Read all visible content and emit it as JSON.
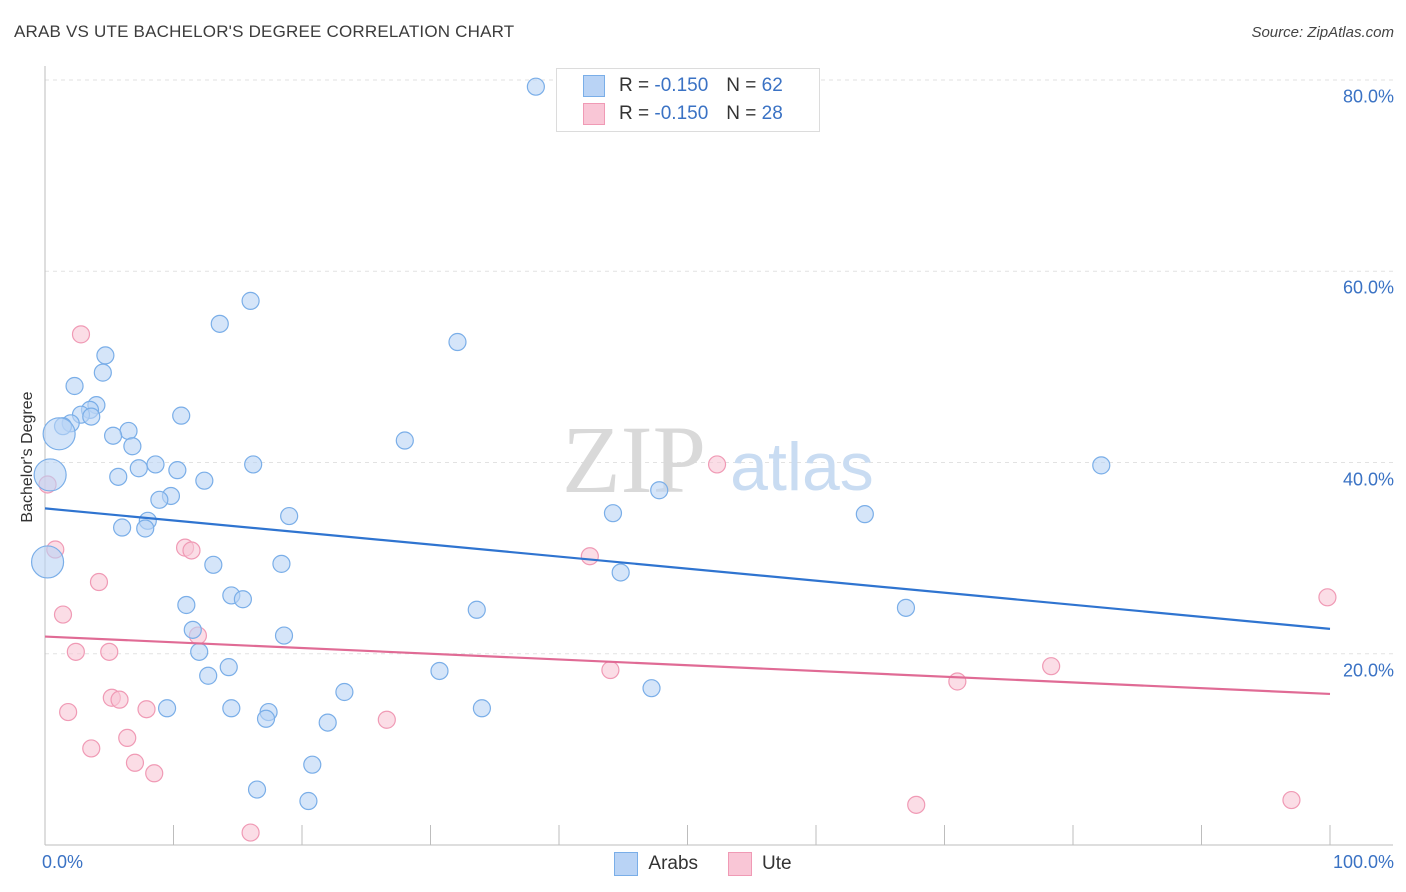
{
  "header": {
    "title": "ARAB VS UTE BACHELOR'S DEGREE CORRELATION CHART",
    "source": "Source: ZipAtlas.com"
  },
  "watermark": {
    "zip": "ZIP",
    "atlas": "atlas"
  },
  "colors": {
    "arabs_fill": "#b9d3f5",
    "arabs_stroke": "#7aaee8",
    "arabs_line": "#2f74d0",
    "ute_fill": "#f9c6d6",
    "ute_stroke": "#f09ab5",
    "ute_line": "#e06b95",
    "axis_text": "#3a72c4"
  },
  "legend_top": [
    {
      "series": "arabs",
      "r_label": "R =",
      "r_value": "-0.150",
      "n_label": "N =",
      "n_value": "62"
    },
    {
      "series": "ute",
      "r_label": "R =",
      "r_value": "-0.150",
      "n_label": "N =",
      "n_value": "28"
    }
  ],
  "legend_bottom": [
    {
      "series": "arabs",
      "label": "Arabs"
    },
    {
      "series": "ute",
      "label": "Ute"
    }
  ],
  "chart_data": {
    "type": "scatter",
    "xlabel": "",
    "ylabel": "Bachelor's Degree",
    "xlim": [
      0,
      100
    ],
    "ylim": [
      0,
      80
    ],
    "x_tick_labels": [
      {
        "value": 0,
        "label": "0.0%"
      },
      {
        "value": 100,
        "label": "100.0%"
      }
    ],
    "y_tick_labels": [
      {
        "value": 20,
        "label": "20.0%"
      },
      {
        "value": 40,
        "label": "40.0%"
      },
      {
        "value": 60,
        "label": "60.0%"
      },
      {
        "value": 80,
        "label": "80.0%"
      }
    ],
    "grid": true,
    "legend_position": "top-center",
    "series": [
      {
        "name": "Arabs",
        "trend": {
          "x": [
            0,
            100
          ],
          "y": [
            35.2,
            22.6
          ]
        },
        "points": [
          {
            "x": 38.2,
            "y": 79.3
          },
          {
            "x": 16.0,
            "y": 56.9
          },
          {
            "x": 13.6,
            "y": 54.5
          },
          {
            "x": 32.1,
            "y": 52.6
          },
          {
            "x": 4.7,
            "y": 51.2
          },
          {
            "x": 4.5,
            "y": 49.4
          },
          {
            "x": 2.3,
            "y": 48.0
          },
          {
            "x": 4.0,
            "y": 46.0
          },
          {
            "x": 3.5,
            "y": 45.5
          },
          {
            "x": 2.8,
            "y": 45.0
          },
          {
            "x": 3.6,
            "y": 44.8
          },
          {
            "x": 10.6,
            "y": 44.9
          },
          {
            "x": 2.0,
            "y": 44.1
          },
          {
            "x": 1.4,
            "y": 43.8
          },
          {
            "x": 1.1,
            "y": 43.0,
            "size": "large"
          },
          {
            "x": 6.5,
            "y": 43.3
          },
          {
            "x": 5.3,
            "y": 42.8
          },
          {
            "x": 28.0,
            "y": 42.3
          },
          {
            "x": 6.8,
            "y": 41.7
          },
          {
            "x": 8.6,
            "y": 39.8
          },
          {
            "x": 16.2,
            "y": 39.8
          },
          {
            "x": 82.2,
            "y": 39.7
          },
          {
            "x": 7.3,
            "y": 39.4
          },
          {
            "x": 10.3,
            "y": 39.2
          },
          {
            "x": 0.4,
            "y": 38.7,
            "size": "large"
          },
          {
            "x": 5.7,
            "y": 38.5
          },
          {
            "x": 12.4,
            "y": 38.1
          },
          {
            "x": 47.8,
            "y": 37.1
          },
          {
            "x": 9.8,
            "y": 36.5
          },
          {
            "x": 8.9,
            "y": 36.1
          },
          {
            "x": 44.2,
            "y": 34.7
          },
          {
            "x": 63.8,
            "y": 34.6
          },
          {
            "x": 19.0,
            "y": 34.4
          },
          {
            "x": 8.0,
            "y": 33.9
          },
          {
            "x": 6.0,
            "y": 33.2
          },
          {
            "x": 7.8,
            "y": 33.1
          },
          {
            "x": 0.2,
            "y": 29.6,
            "size": "large"
          },
          {
            "x": 13.1,
            "y": 29.3
          },
          {
            "x": 18.4,
            "y": 29.4
          },
          {
            "x": 44.8,
            "y": 28.5
          },
          {
            "x": 14.5,
            "y": 26.1
          },
          {
            "x": 15.4,
            "y": 25.7
          },
          {
            "x": 11.0,
            "y": 25.1
          },
          {
            "x": 67.0,
            "y": 24.8
          },
          {
            "x": 33.6,
            "y": 24.6
          },
          {
            "x": 11.5,
            "y": 22.5
          },
          {
            "x": 18.6,
            "y": 21.9
          },
          {
            "x": 12.0,
            "y": 20.2
          },
          {
            "x": 14.3,
            "y": 18.6
          },
          {
            "x": 30.7,
            "y": 18.2
          },
          {
            "x": 12.7,
            "y": 17.7
          },
          {
            "x": 47.2,
            "y": 16.4
          },
          {
            "x": 23.3,
            "y": 16.0
          },
          {
            "x": 9.5,
            "y": 14.3
          },
          {
            "x": 14.5,
            "y": 14.3
          },
          {
            "x": 34.0,
            "y": 14.3
          },
          {
            "x": 17.4,
            "y": 13.9
          },
          {
            "x": 17.2,
            "y": 13.2
          },
          {
            "x": 22.0,
            "y": 12.8
          },
          {
            "x": 20.8,
            "y": 8.4
          },
          {
            "x": 16.5,
            "y": 5.8
          },
          {
            "x": 20.5,
            "y": 4.6
          }
        ]
      },
      {
        "name": "Ute",
        "trend": {
          "x": [
            0,
            100
          ],
          "y": [
            21.8,
            15.8
          ]
        },
        "points": [
          {
            "x": 2.8,
            "y": 53.4
          },
          {
            "x": 52.3,
            "y": 39.8
          },
          {
            "x": 0.2,
            "y": 37.7
          },
          {
            "x": 10.9,
            "y": 31.1
          },
          {
            "x": 11.4,
            "y": 30.8
          },
          {
            "x": 0.8,
            "y": 30.9
          },
          {
            "x": 42.4,
            "y": 30.2
          },
          {
            "x": 4.2,
            "y": 27.5
          },
          {
            "x": 99.8,
            "y": 25.9
          },
          {
            "x": 1.4,
            "y": 24.1
          },
          {
            "x": 11.9,
            "y": 21.9
          },
          {
            "x": 2.4,
            "y": 20.2
          },
          {
            "x": 5.0,
            "y": 20.2
          },
          {
            "x": 78.3,
            "y": 18.7
          },
          {
            "x": 44.0,
            "y": 18.3
          },
          {
            "x": 71.0,
            "y": 17.1
          },
          {
            "x": 5.2,
            "y": 15.4
          },
          {
            "x": 5.8,
            "y": 15.2
          },
          {
            "x": 7.9,
            "y": 14.2
          },
          {
            "x": 1.8,
            "y": 13.9
          },
          {
            "x": 26.6,
            "y": 13.1
          },
          {
            "x": 6.4,
            "y": 11.2
          },
          {
            "x": 3.6,
            "y": 10.1
          },
          {
            "x": 7.0,
            "y": 8.6
          },
          {
            "x": 8.5,
            "y": 7.5
          },
          {
            "x": 97.0,
            "y": 4.7
          },
          {
            "x": 67.8,
            "y": 4.2
          },
          {
            "x": 16.0,
            "y": 1.3
          }
        ]
      }
    ]
  }
}
